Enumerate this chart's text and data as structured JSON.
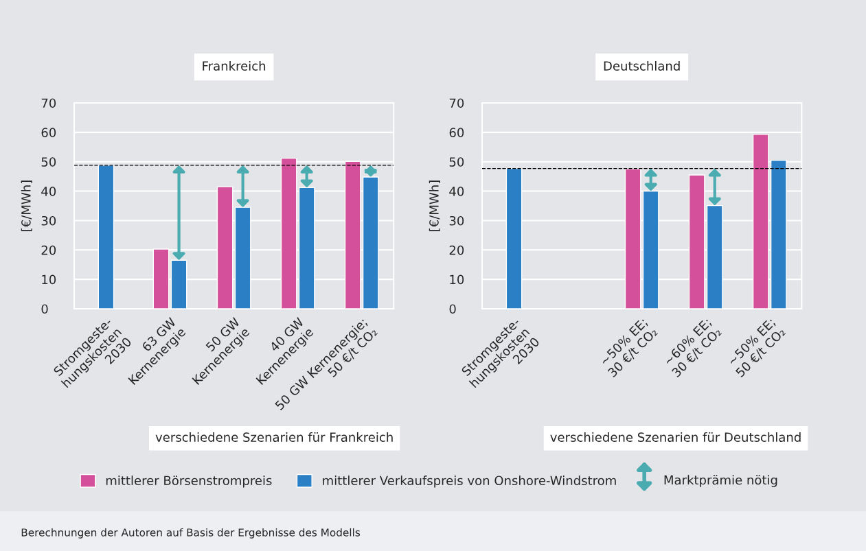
{
  "chart_data": [
    {
      "type": "bar",
      "title": "Frankreich",
      "ylabel": "[€/MWh]",
      "xlabel": "verschiedene Szenarien für Frankreich",
      "categories": [
        "Stromgeste-\nhungskosten\n2030",
        "63 GW\nKernenergie",
        "50 GW\nKernenergie",
        "40 GW\nKernenergie",
        "50 GW Kernenergie;\n50 €/t CO₂"
      ],
      "series": [
        {
          "name": "mittlerer Börsenstrompreis",
          "color": "#d4509a",
          "values": [
            null,
            20.3,
            41.5,
            51.2,
            50.1
          ]
        },
        {
          "name": "mittlerer Verkaufspreis von Onshore-Windstrom",
          "color": "#2b7fc4",
          "values": [
            48.8,
            16.5,
            34.5,
            41.2,
            44.8
          ]
        }
      ],
      "ylim": [
        0,
        70
      ],
      "yticks": [
        0,
        10,
        20,
        30,
        40,
        50,
        60,
        70
      ],
      "grid": "y",
      "legend": "bottom",
      "ref_lines": [
        {
          "axis": "y",
          "value": 48.8,
          "color": "#000000",
          "line_style": "dashed"
        }
      ],
      "annotations": [
        "Marktprämie nötig",
        "Berechnungen der Autoren auf Basis der Ergebnisse des Modells"
      ]
    },
    {
      "type": "bar",
      "title": "Deutschland",
      "ylabel": "[€/MWh]",
      "xlabel": "verschiedene Szenarien für Deutschland",
      "categories": [
        "Stromgeste-\nhungskosten\n2030",
        null,
        "~50% EE;\n30 €/t CO₂",
        "~60% EE;\n30 €/t CO₂",
        "~50% EE;\n50 €/t CO₂"
      ],
      "series": [
        {
          "color": "#d4509a",
          "values": [
            null,
            null,
            47.6,
            45.5,
            59.3
          ]
        },
        {
          "color": "#2b7fc4",
          "values": [
            47.7,
            null,
            40.0,
            35.1,
            50.5
          ]
        }
      ],
      "ylim": [
        0,
        70
      ],
      "yticks": [
        0,
        10,
        20,
        30,
        40,
        50,
        60,
        70
      ],
      "grid": "y",
      "ref_lines": [
        {
          "axis": "y",
          "value": 47.7,
          "color": "#000000",
          "line_style": "dashed"
        }
      ]
    }
  ]
}
